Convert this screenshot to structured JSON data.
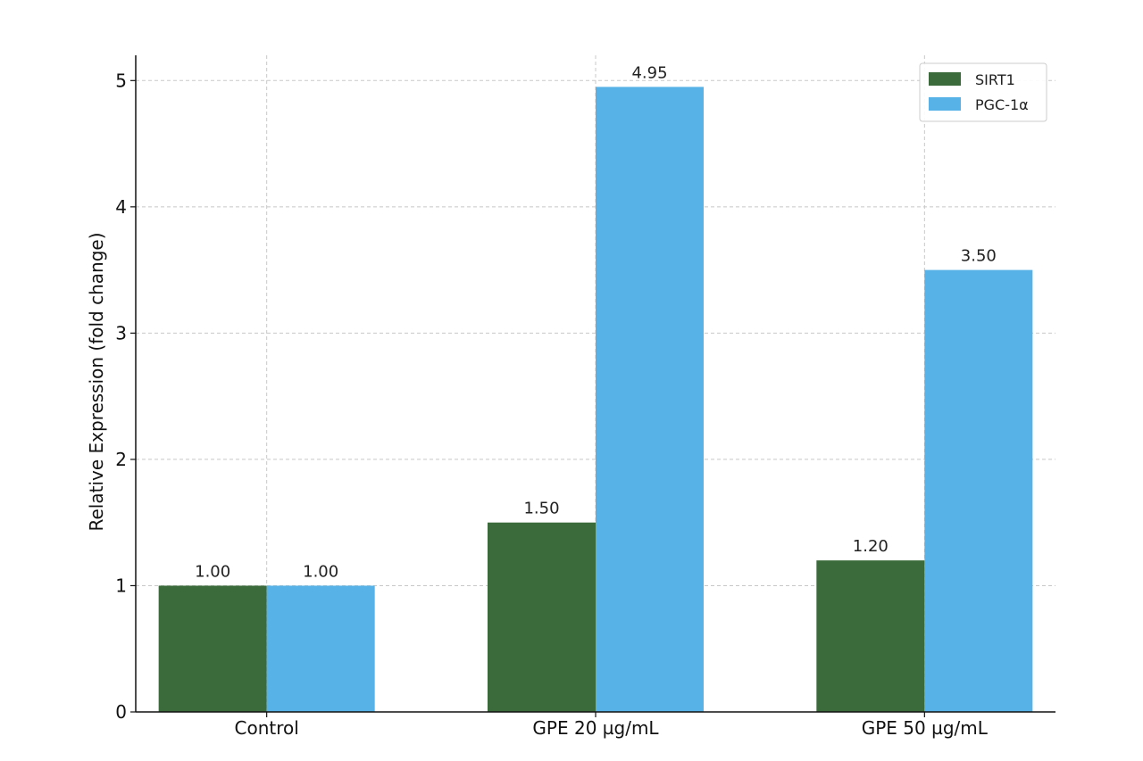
{
  "chart_data": {
    "type": "bar",
    "title": "",
    "xlabel": "",
    "ylabel": "Relative Expression (fold change)",
    "categories": [
      "Control",
      "GPE 20 µg/mL",
      "GPE 50 µg/mL"
    ],
    "series": [
      {
        "name": "SIRT1",
        "values": [
          1.0,
          1.5,
          1.2
        ],
        "labels": [
          "1.00",
          "1.50",
          "1.20"
        ],
        "color": "#3b6b3a"
      },
      {
        "name": "PGC-1α",
        "values": [
          1.0,
          4.95,
          3.5
        ],
        "labels": [
          "1.00",
          "4.95",
          "3.50"
        ],
        "color": "#56b2e7"
      }
    ],
    "ylim": [
      0,
      5.2
    ],
    "yticks": [
      0,
      1,
      2,
      3,
      4,
      5
    ],
    "ytick_labels": [
      "0",
      "1",
      "2",
      "3",
      "4",
      "5"
    ],
    "grid": true,
    "legend": "top-right"
  }
}
